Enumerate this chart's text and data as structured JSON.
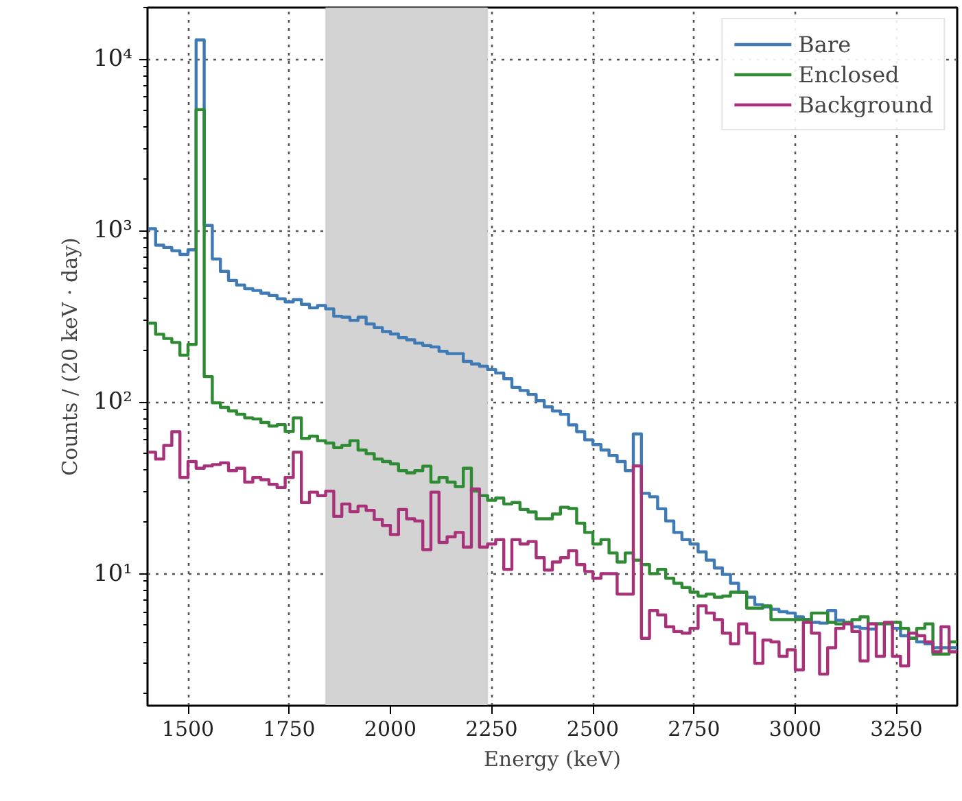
{
  "chart_data": {
    "type": "histogram",
    "xlabel": "Energy (keV)",
    "ylabel": "Counts / (20 keV · day)",
    "bins": [
      1400,
      1420,
      1440,
      1460,
      1480,
      1500,
      1520,
      1540,
      1560,
      1580,
      1600,
      1620,
      1640,
      1660,
      1680,
      1700,
      1720,
      1740,
      1760,
      1780,
      1800,
      1820,
      1840,
      1860,
      1880,
      1900,
      1920,
      1940,
      1960,
      1980,
      2000,
      2020,
      2040,
      2060,
      2080,
      2100,
      2120,
      2140,
      2160,
      2180,
      2200,
      2220,
      2240,
      2260,
      2280,
      2300,
      2320,
      2340,
      2360,
      2380,
      2400,
      2420,
      2440,
      2460,
      2480,
      2500,
      2520,
      2540,
      2560,
      2580,
      2600,
      2620,
      2640,
      2660,
      2680,
      2700,
      2720,
      2740,
      2760,
      2780,
      2800,
      2820,
      2840,
      2860,
      2880,
      2900,
      2920,
      2940,
      2960,
      2980,
      3000,
      3020,
      3040,
      3060,
      3080,
      3100,
      3120,
      3140,
      3160,
      3180,
      3200,
      3220,
      3240,
      3260,
      3280,
      3300,
      3320,
      3340,
      3360,
      3380,
      3400
    ],
    "series": [
      {
        "name": "Bare",
        "color": "#3f7ab5",
        "values": [
          1027,
          823,
          798,
          764,
          727,
          774,
          12950,
          1072,
          684,
          579,
          513,
          482,
          459,
          448,
          432,
          419,
          401,
          384,
          396,
          372,
          355,
          366,
          350,
          317,
          313,
          300,
          313,
          286,
          272,
          258,
          250,
          238,
          231,
          221,
          214,
          210,
          198,
          192,
          192,
          173,
          167,
          162,
          155,
          148,
          137,
          122,
          117,
          111,
          102,
          94,
          88.8,
          85,
          73.8,
          67.3,
          60.3,
          56.6,
          52.6,
          48.9,
          45.1,
          39.9,
          65.3,
          29.4,
          28.1,
          23.9,
          20.3,
          17.4,
          15.8,
          14.9,
          13.4,
          12.0,
          10.8,
          9.9,
          8.8,
          7.8,
          7.3,
          6.6,
          6.4,
          6.2,
          6.0,
          5.9,
          5.6,
          5.4,
          5.2,
          5.15,
          6.1,
          5.35,
          5.1,
          4.9,
          4.8,
          4.75,
          5.1,
          5.1,
          4.8,
          4.35,
          4.2,
          4.0,
          3.9,
          3.7,
          3.7,
          3.7
        ]
      },
      {
        "name": "Enclosed",
        "color": "#2e8b34",
        "values": [
          289,
          249,
          235,
          223,
          188,
          217,
          5080,
          141,
          99.2,
          93.3,
          88.9,
          85.1,
          81.0,
          79.9,
          76.2,
          72.6,
          74.0,
          67.5,
          81.0,
          61.5,
          63.4,
          59.6,
          57.8,
          54.3,
          56.0,
          59.6,
          52.6,
          50.1,
          46.6,
          45.1,
          43.7,
          39.9,
          38.7,
          39.9,
          42.4,
          34.2,
          36.4,
          34.2,
          32.2,
          41.2,
          30.3,
          28.5,
          26.8,
          27.6,
          25.5,
          26.0,
          23.7,
          22.9,
          20.9,
          20.9,
          22.3,
          24.4,
          24.0,
          19.7,
          17.4,
          14.9,
          15.8,
          13.2,
          11.7,
          13.2,
          12.0,
          11.3,
          10.0,
          10.6,
          9.4,
          8.8,
          8.3,
          7.8,
          7.4,
          7.6,
          7.3,
          7.4,
          7.8,
          7.8,
          6.3,
          6.3,
          6.5,
          5.4,
          5.4,
          5.4,
          5.4,
          5.4,
          5.9,
          5.9,
          5.2,
          5.1,
          5.2,
          5.4,
          5.6,
          5.1,
          5.1,
          5.1,
          5.2,
          4.8,
          4.2,
          4.8,
          5.1,
          3.4,
          3.4,
          4.0
        ]
      },
      {
        "name": "Background",
        "color": "#a8327a",
        "values": [
          51.1,
          46.6,
          56.0,
          67.3,
          36.4,
          45.1,
          41.2,
          42.5,
          43.3,
          44.3,
          39.9,
          41.2,
          34.2,
          36.4,
          35.3,
          33.2,
          31.8,
          36.4,
          51.1,
          26.0,
          29.9,
          28.5,
          30.3,
          21.6,
          25.5,
          23.0,
          24.8,
          23.4,
          20.7,
          19.1,
          16.9,
          23.7,
          20.9,
          20.3,
          13.8,
          29.9,
          15.2,
          16.4,
          17.4,
          14.3,
          31.2,
          14.3,
          14.9,
          15.8,
          10.6,
          15.8,
          14.9,
          15.4,
          12.4,
          10.5,
          11.7,
          12.4,
          13.6,
          11.3,
          10.3,
          9.4,
          10.0,
          10.0,
          7.6,
          7.6,
          42.5,
          4.2,
          6.1,
          5.75,
          4.9,
          4.6,
          4.5,
          4.8,
          6.5,
          5.9,
          5.4,
          4.5,
          3.9,
          5.1,
          4.5,
          3.0,
          4.1,
          4.0,
          3.3,
          3.6,
          2.75,
          5.2,
          4.5,
          2.6,
          3.7,
          4.8,
          5.1,
          4.6,
          3.1,
          5.1,
          3.3,
          5.2,
          3.3,
          2.9,
          4.5,
          4.35,
          4.0,
          3.5,
          4.9,
          3.5
        ]
      }
    ],
    "xlim": [
      1400,
      3400
    ],
    "xticks": [
      1500,
      1750,
      2000,
      2250,
      2500,
      2750,
      3000,
      3250
    ],
    "ylim": [
      1.7,
      20000
    ],
    "yticks": [
      {
        "value": 10,
        "label": "10¹"
      },
      {
        "value": 100,
        "label": "10²"
      },
      {
        "value": 1000,
        "label": "10³"
      },
      {
        "value": 10000,
        "label": "10⁴"
      }
    ],
    "log": "y",
    "grid": true,
    "legend": "top right",
    "line_style": "solid",
    "bands": [
      {
        "axis": "x",
        "from": 1840,
        "to": 2240,
        "color": "#d3d3d3"
      }
    ]
  }
}
